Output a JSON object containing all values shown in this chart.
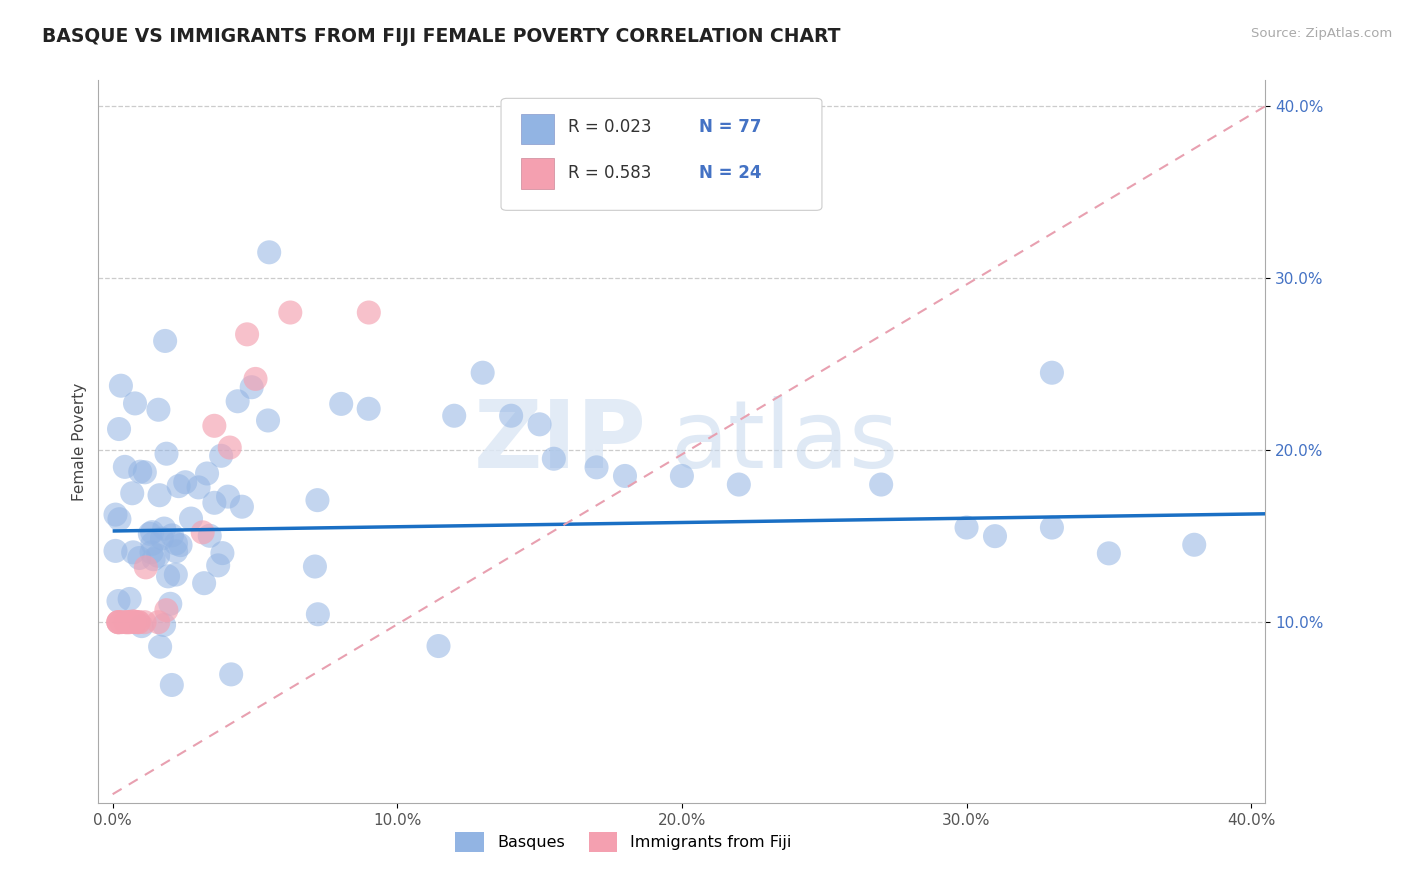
{
  "title": "BASQUE VS IMMIGRANTS FROM FIJI FEMALE POVERTY CORRELATION CHART",
  "source_text": "Source: ZipAtlas.com",
  "ylabel": "Female Poverty",
  "xlim": [
    -0.005,
    0.405
  ],
  "ylim": [
    -0.005,
    0.415
  ],
  "xtick_vals": [
    0.0,
    0.1,
    0.2,
    0.3,
    0.4
  ],
  "ytick_vals": [
    0.1,
    0.2,
    0.3,
    0.4
  ],
  "legend_labels": [
    "Basques",
    "Immigrants from Fiji"
  ],
  "basque_color": "#92b4e3",
  "fiji_color": "#f4a0b0",
  "basque_trend_color": "#1a6fc4",
  "fiji_trend_color": "#e8a0b0",
  "background_color": "#ffffff",
  "watermark_zip": "ZIP",
  "watermark_atlas": "atlas",
  "basque_trend_x": [
    0.0,
    0.405
  ],
  "basque_trend_y": [
    0.153,
    0.163
  ],
  "fiji_trend_x": [
    0.0,
    0.405
  ],
  "fiji_trend_y": [
    0.0,
    0.4
  ]
}
